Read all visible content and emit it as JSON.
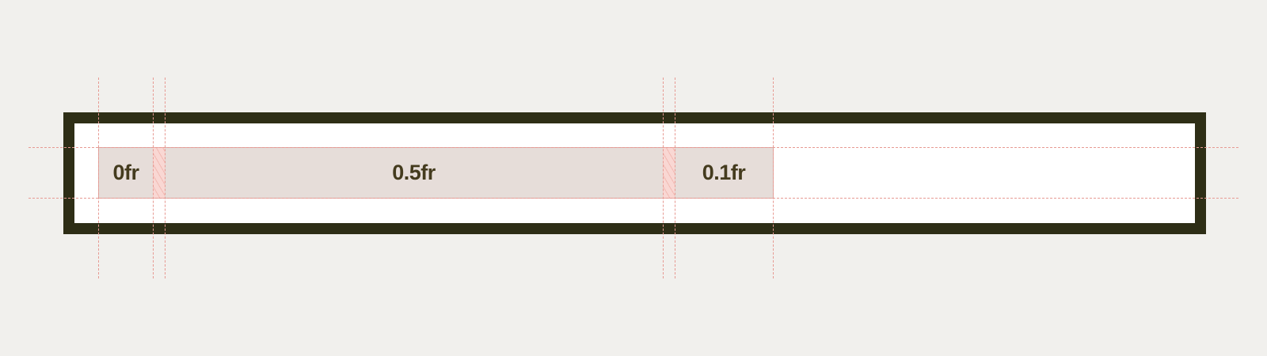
{
  "grid": {
    "tracks": [
      {
        "label": "0fr"
      },
      {
        "label": "0.5fr"
      },
      {
        "label": "0.1fr"
      }
    ]
  },
  "colors": {
    "background": "#f1f0ed",
    "container_border": "#2e2e16",
    "track_fill": "#e6ddd9",
    "gap_fill": "#f9d7d3",
    "grid_line": "#e79a93",
    "label_text": "#443b1e"
  }
}
